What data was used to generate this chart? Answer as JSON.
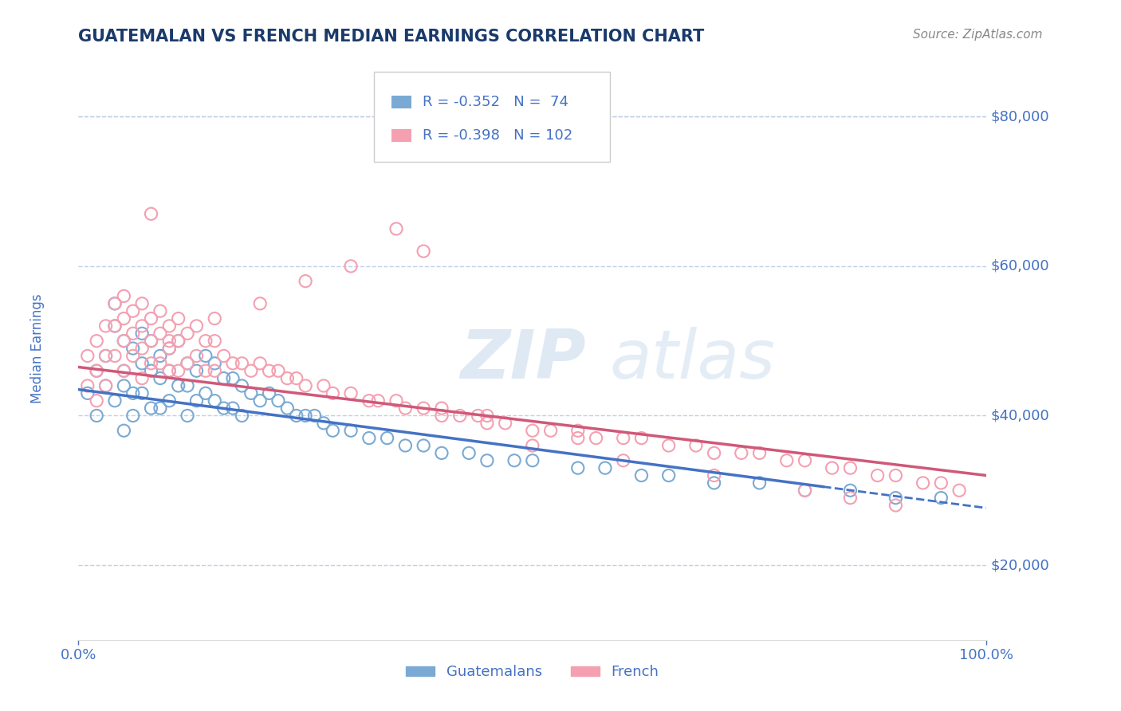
{
  "title": "GUATEMALAN VS FRENCH MEDIAN EARNINGS CORRELATION CHART",
  "source_text": "Source: ZipAtlas.com",
  "ylabel": "Median Earnings",
  "watermark_zip": "ZIP",
  "watermark_atlas": "atlas",
  "legend_r1": "R = -0.352",
  "legend_n1": "N =  74",
  "legend_r2": "R = -0.398",
  "legend_n2": "N = 102",
  "legend_label1": "Guatemalans",
  "legend_label2": "French",
  "xlim": [
    0.0,
    1.0
  ],
  "ylim": [
    10000,
    88000
  ],
  "yticks": [
    20000,
    40000,
    60000,
    80000
  ],
  "title_color": "#1a3a6b",
  "axis_label_color": "#4472c4",
  "tick_color": "#4472c4",
  "grid_color": "#c0d0e8",
  "scatter_color_blue": "#7aaad4",
  "scatter_color_pink": "#f4a0b0",
  "trend_color_blue": "#4472c4",
  "trend_color_pink": "#d05878",
  "bg_color": "#ffffff",
  "guatemalan_x": [
    0.01,
    0.02,
    0.02,
    0.03,
    0.03,
    0.04,
    0.04,
    0.04,
    0.05,
    0.05,
    0.05,
    0.05,
    0.06,
    0.06,
    0.06,
    0.07,
    0.07,
    0.07,
    0.08,
    0.08,
    0.08,
    0.09,
    0.09,
    0.09,
    0.1,
    0.1,
    0.1,
    0.11,
    0.11,
    0.12,
    0.12,
    0.12,
    0.13,
    0.13,
    0.14,
    0.14,
    0.15,
    0.15,
    0.16,
    0.16,
    0.17,
    0.17,
    0.18,
    0.18,
    0.19,
    0.2,
    0.21,
    0.22,
    0.23,
    0.24,
    0.25,
    0.26,
    0.27,
    0.28,
    0.3,
    0.32,
    0.34,
    0.36,
    0.38,
    0.4,
    0.43,
    0.45,
    0.48,
    0.5,
    0.55,
    0.58,
    0.62,
    0.65,
    0.7,
    0.75,
    0.8,
    0.85,
    0.9,
    0.95
  ],
  "guatemalan_y": [
    43000,
    46000,
    40000,
    44000,
    48000,
    52000,
    55000,
    42000,
    50000,
    46000,
    44000,
    38000,
    49000,
    43000,
    40000,
    51000,
    47000,
    43000,
    50000,
    46000,
    41000,
    48000,
    45000,
    41000,
    49000,
    46000,
    42000,
    50000,
    44000,
    47000,
    44000,
    40000,
    46000,
    42000,
    48000,
    43000,
    47000,
    42000,
    45000,
    41000,
    45000,
    41000,
    44000,
    40000,
    43000,
    42000,
    43000,
    42000,
    41000,
    40000,
    40000,
    40000,
    39000,
    38000,
    38000,
    37000,
    37000,
    36000,
    36000,
    35000,
    35000,
    34000,
    34000,
    34000,
    33000,
    33000,
    32000,
    32000,
    31000,
    31000,
    30000,
    30000,
    29000,
    29000
  ],
  "french_x": [
    0.01,
    0.01,
    0.02,
    0.02,
    0.02,
    0.03,
    0.03,
    0.03,
    0.04,
    0.04,
    0.04,
    0.05,
    0.05,
    0.05,
    0.05,
    0.06,
    0.06,
    0.06,
    0.07,
    0.07,
    0.07,
    0.07,
    0.08,
    0.08,
    0.08,
    0.09,
    0.09,
    0.09,
    0.1,
    0.1,
    0.1,
    0.11,
    0.11,
    0.11,
    0.12,
    0.12,
    0.13,
    0.13,
    0.14,
    0.14,
    0.15,
    0.15,
    0.16,
    0.17,
    0.18,
    0.19,
    0.2,
    0.21,
    0.22,
    0.23,
    0.24,
    0.25,
    0.27,
    0.28,
    0.3,
    0.32,
    0.33,
    0.35,
    0.36,
    0.38,
    0.4,
    0.42,
    0.44,
    0.45,
    0.47,
    0.5,
    0.52,
    0.55,
    0.57,
    0.6,
    0.62,
    0.65,
    0.68,
    0.7,
    0.73,
    0.75,
    0.78,
    0.8,
    0.83,
    0.85,
    0.88,
    0.9,
    0.93,
    0.95,
    0.97,
    0.35,
    0.38,
    0.3,
    0.25,
    0.2,
    0.15,
    0.1,
    0.08,
    0.5,
    0.6,
    0.45,
    0.55,
    0.4,
    0.7,
    0.8,
    0.85,
    0.9
  ],
  "french_y": [
    48000,
    44000,
    50000,
    46000,
    42000,
    52000,
    48000,
    44000,
    55000,
    52000,
    48000,
    56000,
    53000,
    50000,
    46000,
    54000,
    51000,
    48000,
    55000,
    52000,
    49000,
    45000,
    53000,
    50000,
    47000,
    54000,
    51000,
    47000,
    52000,
    49000,
    46000,
    53000,
    50000,
    46000,
    51000,
    47000,
    52000,
    48000,
    50000,
    46000,
    50000,
    46000,
    48000,
    47000,
    47000,
    46000,
    47000,
    46000,
    46000,
    45000,
    45000,
    44000,
    44000,
    43000,
    43000,
    42000,
    42000,
    42000,
    41000,
    41000,
    40000,
    40000,
    40000,
    39000,
    39000,
    38000,
    38000,
    38000,
    37000,
    37000,
    37000,
    36000,
    36000,
    35000,
    35000,
    35000,
    34000,
    34000,
    33000,
    33000,
    32000,
    32000,
    31000,
    31000,
    30000,
    65000,
    62000,
    60000,
    58000,
    55000,
    53000,
    50000,
    67000,
    36000,
    34000,
    40000,
    37000,
    41000,
    32000,
    30000,
    29000,
    28000
  ],
  "trendline_blue_x0": 0.0,
  "trendline_blue_y0": 43500,
  "trendline_blue_x1": 0.82,
  "trendline_blue_y1": 30500,
  "trendline_pink_x0": 0.0,
  "trendline_pink_y0": 46500,
  "trendline_pink_x1": 1.0,
  "trendline_pink_y1": 32000,
  "trendline_blue_dash_x0": 0.82,
  "trendline_blue_dash_x1": 1.0
}
